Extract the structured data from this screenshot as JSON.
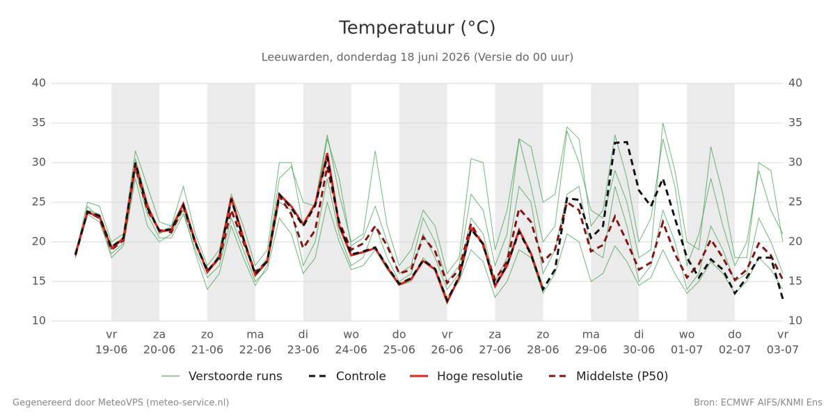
{
  "chart_data": {
    "type": "line",
    "title": "Temperatuur (°C)",
    "subtitle": "Leeuwarden, donderdag 18 juni 2026 (Versie do 00 uur)",
    "categories": [
      null,
      null,
      null,
      "19-06",
      null,
      null,
      null,
      "20-06",
      null,
      null,
      null,
      "21-06",
      null,
      null,
      null,
      "22-06",
      null,
      null,
      null,
      "23-06",
      null,
      null,
      null,
      "24-06",
      null,
      null,
      null,
      "25-06",
      null,
      null,
      null,
      "26-06",
      null,
      null,
      null,
      "27-06",
      null,
      null,
      null,
      "28-06",
      null,
      null,
      null,
      "29-06",
      null,
      null,
      null,
      "30-06",
      null,
      null,
      null,
      "01-07",
      null,
      null,
      null,
      "02-07",
      null,
      null,
      null,
      "03-07"
    ],
    "weekdays": [
      null,
      null,
      null,
      "vr",
      null,
      null,
      null,
      "za",
      null,
      null,
      null,
      "zo",
      null,
      null,
      null,
      "ma",
      null,
      null,
      null,
      "di",
      null,
      null,
      null,
      "wo",
      null,
      null,
      null,
      "do",
      null,
      null,
      null,
      "vr",
      null,
      null,
      null,
      "za",
      null,
      null,
      null,
      "zo",
      null,
      null,
      null,
      "ma",
      null,
      null,
      null,
      "di",
      null,
      null,
      null,
      "wo",
      null,
      null,
      null,
      "do",
      null,
      null,
      null,
      "vr"
    ],
    "ylim": [
      10,
      40
    ],
    "yticks": [
      10,
      15,
      20,
      25,
      30,
      35,
      40
    ],
    "grid": true,
    "ensemble": {
      "name": "Verstoorde runs",
      "color": "#2e9a3e",
      "members": [
        [
          18,
          24,
          23.5,
          19.5,
          20.5,
          30.5,
          25,
          21,
          22,
          25,
          20,
          16,
          18.5,
          25,
          20.5,
          16,
          18,
          28,
          29.5,
          25,
          24.5,
          33,
          28,
          19.5,
          20.5,
          24.5,
          20,
          16,
          17,
          23,
          20,
          15,
          17,
          26,
          24,
          17,
          21,
          33,
          32,
          25,
          26,
          34.5,
          33,
          22,
          24,
          33.5,
          28,
          20,
          23,
          33,
          27,
          17,
          21,
          28,
          22,
          17,
          20,
          29,
          24,
          21
        ],
        [
          18.2,
          23.5,
          22.5,
          18.5,
          19.8,
          29,
          23.5,
          20.5,
          20.5,
          23.5,
          19,
          15.5,
          17,
          23,
          19,
          15,
          16.5,
          23,
          21,
          16,
          18,
          25,
          20,
          16.5,
          17,
          19,
          16.5,
          14.5,
          15,
          18,
          16.5,
          13,
          15,
          19,
          17.5,
          13,
          15,
          19,
          18,
          13.5,
          16,
          21,
          20,
          15,
          16,
          19.5,
          17.5,
          14.5,
          15.5,
          19,
          16,
          13.5,
          15,
          17.5,
          16,
          13.5,
          15,
          18,
          16.5,
          14
        ],
        [
          18.5,
          25,
          24.5,
          20,
          21,
          31.5,
          27,
          22.5,
          22,
          27,
          21,
          17,
          19,
          26,
          22,
          17,
          19,
          30,
          30,
          22,
          25,
          33.5,
          26,
          20,
          21,
          31.5,
          22,
          17,
          19,
          24,
          22,
          16,
          18,
          30.5,
          30,
          19,
          24,
          33,
          27,
          20,
          22,
          34,
          30,
          24,
          23,
          29,
          25,
          18,
          19,
          35,
          29,
          20,
          19,
          32,
          26,
          18,
          18,
          30,
          29,
          20
        ],
        [
          18,
          24.5,
          23,
          18,
          19.5,
          28,
          22,
          20,
          21,
          24,
          18.5,
          14,
          16,
          22,
          18,
          14.5,
          17,
          25,
          24,
          17,
          20,
          28,
          21,
          17,
          18,
          22,
          18,
          15,
          16,
          21,
          18,
          14,
          16,
          23,
          21,
          15,
          18,
          27,
          25,
          16,
          19,
          26,
          27,
          19,
          18,
          27,
          22,
          15,
          17,
          24,
          20,
          14,
          16,
          22,
          19,
          15,
          16,
          23,
          20,
          16
        ]
      ]
    },
    "series": [
      {
        "name": "Controle",
        "color": "#111111",
        "dash": true,
        "values": [
          18.4,
          23.8,
          23.3,
          19.3,
          20.5,
          30,
          24.3,
          21.4,
          21.6,
          24.6,
          19.9,
          16.3,
          18.1,
          25.4,
          20.4,
          15.9,
          17.6,
          26,
          24.3,
          22,
          24.6,
          30.8,
          22.2,
          18.4,
          18.8,
          19.3,
          16.9,
          14.7,
          15.4,
          17.7,
          16.6,
          12.6,
          15.6,
          21.6,
          19.7,
          14.5,
          17.1,
          21.3,
          18.4,
          14,
          16.5,
          25.5,
          25.3,
          20.5,
          22,
          32.5,
          32.6,
          26.5,
          24.5,
          28,
          23,
          18,
          15.5,
          17.8,
          16.5,
          13.5,
          15.5,
          18,
          18,
          12.8
        ]
      },
      {
        "name": "Hoge resolutie",
        "color": "#e3211b",
        "dash": false,
        "values": [
          18.5,
          23.7,
          23.2,
          19.2,
          20.4,
          29.8,
          24.5,
          21.3,
          21.5,
          24.8,
          20,
          16.2,
          18,
          25.6,
          20.5,
          15.8,
          17.5,
          26,
          24.5,
          22.2,
          24.8,
          31.2,
          22,
          18.3,
          18.7,
          19.2,
          16.8,
          14.6,
          15.3,
          17.6,
          16.5,
          12.4,
          15.5,
          21.7,
          19.8,
          14.4,
          17,
          21.5,
          18.5,
          14,
          null,
          null,
          null,
          null,
          null,
          null,
          null,
          null,
          null,
          null,
          null,
          null,
          null,
          null,
          null,
          null,
          null,
          null,
          null,
          null
        ]
      },
      {
        "name": "Middelste (P50)",
        "color": "#8b1010",
        "dash": true,
        "values": [
          18.3,
          23.8,
          23,
          19,
          20.2,
          29.5,
          24,
          21.5,
          21.2,
          24.5,
          19.8,
          16.5,
          17.8,
          24,
          20,
          16.2,
          17.5,
          25.8,
          23.5,
          19.2,
          21.5,
          29.5,
          22.5,
          19,
          19.8,
          22,
          19.5,
          16,
          16.5,
          20.6,
          18.8,
          14.8,
          16.5,
          22.3,
          19.5,
          15.2,
          17.5,
          24.2,
          22.5,
          17.5,
          19,
          25,
          24,
          18.8,
          19.6,
          23.2,
          20,
          16.5,
          17.4,
          22.5,
          18.5,
          15.5,
          17.2,
          20.3,
          18,
          15.2,
          16.5,
          19.8,
          18.3,
          15.2
        ]
      }
    ]
  },
  "footer_left": "Gegenereerd door MeteoVPS (meteo-service.nl)",
  "footer_right": "Bron: ECMWF AIFS/KNMI Ens"
}
